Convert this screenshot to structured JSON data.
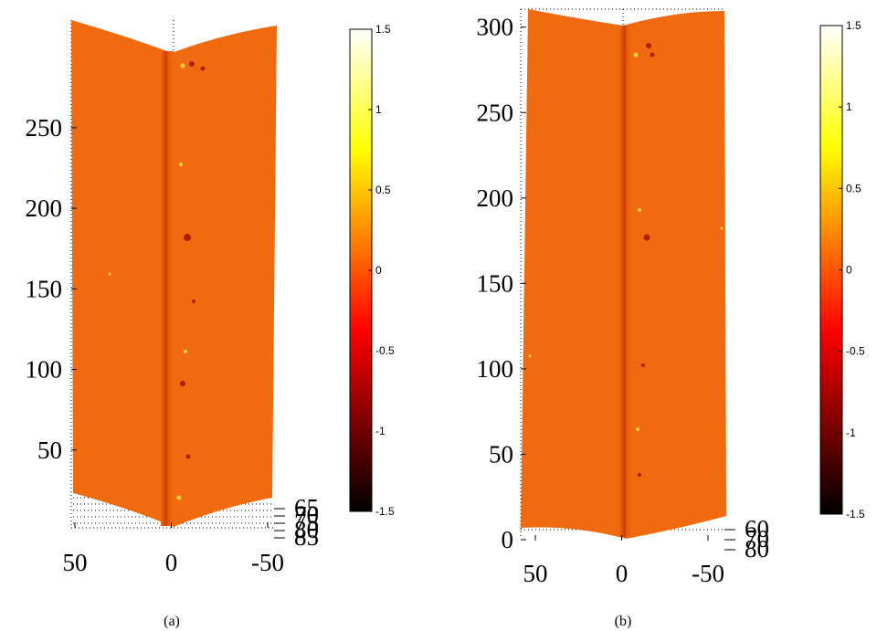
{
  "chart_data": [
    {
      "type": "surface",
      "caption": "(a)",
      "xlim": [
        50,
        -50
      ],
      "xticks": [
        50,
        0,
        -50
      ],
      "ylim": [
        0,
        310
      ],
      "yticks": [
        50,
        100,
        150,
        200,
        250
      ],
      "zlim": [
        65,
        85
      ],
      "zticks": [
        65,
        70,
        75,
        80,
        85
      ],
      "clim": [
        -1.5,
        1.5
      ],
      "cticks": [
        1.5,
        1,
        0.5,
        0,
        -0.5,
        -1,
        -1.5
      ]
    },
    {
      "type": "surface",
      "caption": "(b)",
      "xlim": [
        50,
        -50
      ],
      "xticks": [
        50,
        0,
        -50
      ],
      "ylim": [
        0,
        310
      ],
      "yticks": [
        0,
        50,
        100,
        150,
        200,
        250,
        300
      ],
      "zlim": [
        60,
        80
      ],
      "zticks": [
        60,
        70,
        80
      ],
      "clim": [
        -1.5,
        1.5
      ],
      "cticks": [
        1.5,
        1,
        0.5,
        0,
        -0.5,
        -1,
        -1.5
      ]
    }
  ]
}
